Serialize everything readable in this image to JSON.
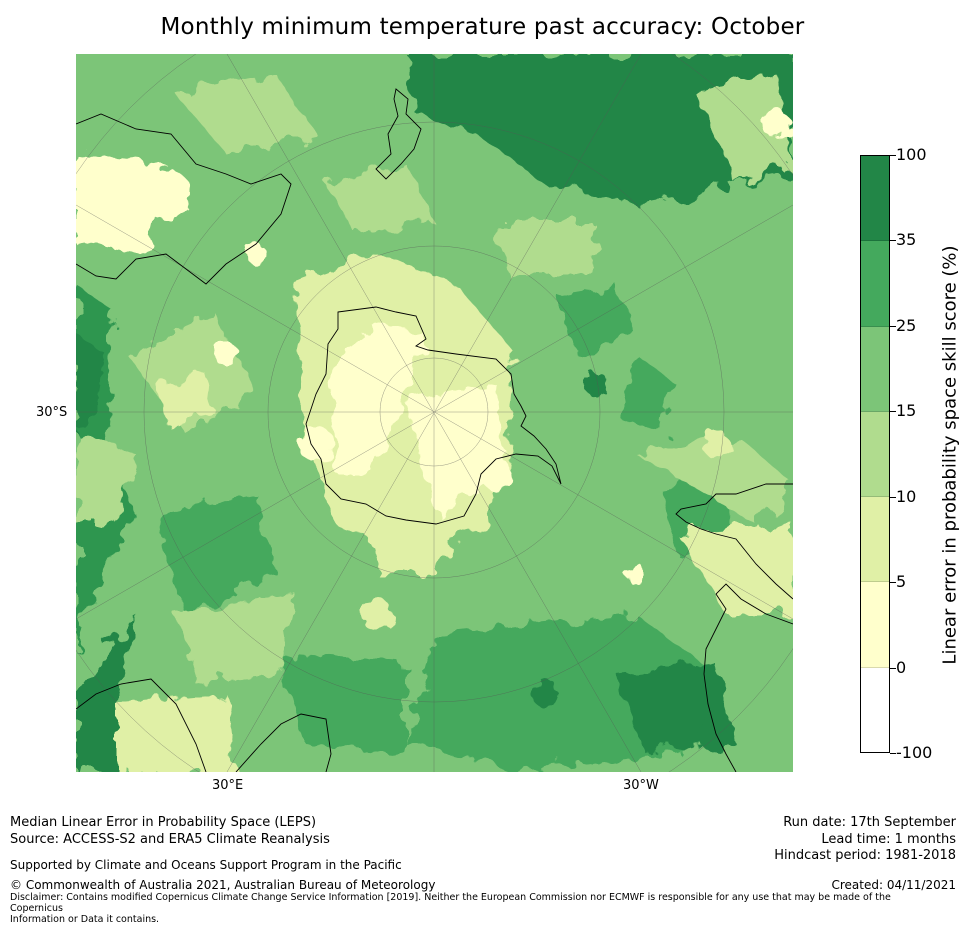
{
  "title": "Monthly minimum temperature past accuracy: October",
  "map": {
    "lat_label": "30°S",
    "lon_labels": [
      "30°E",
      "30°W"
    ],
    "landmasses": [
      "Antarctica",
      "South America",
      "New Zealand",
      "Australia",
      "Africa",
      "Madagascar"
    ]
  },
  "colorbar": {
    "axis_label": "Linear error in probability space skill score (%)",
    "bins": [
      {
        "range": "35 to 100",
        "color": "#228647"
      },
      {
        "range": "25 to 35",
        "color": "#44a95d"
      },
      {
        "range": "15 to 25",
        "color": "#7cc578"
      },
      {
        "range": "10 to 15",
        "color": "#b0dc8e"
      },
      {
        "range": "5 to 10",
        "color": "#e0f0a6"
      },
      {
        "range": "0 to 5",
        "color": "#ffffcc"
      },
      {
        "range": "-100 to 0",
        "color": "#ffffff"
      }
    ],
    "ticks": [
      "100",
      "35",
      "25",
      "15",
      "10",
      "5",
      "0",
      "-100"
    ]
  },
  "footer": {
    "left1": "Median Linear Error in Probability Space (LEPS)",
    "left2": "Source: ACCESS-S2 and ERA5 Climate Reanalysis",
    "support": "Supported by Climate and Oceans Support Program in the Pacific",
    "copyright": "© Commonwealth of Australia 2021, Australian Bureau of Meteorology",
    "disclaimer1": "Disclaimer: Contains modified Copernicus Climate Change Service Information [2019]. Neither the European Commission nor ECMWF is responsible for any use that may be made of the Copernicus",
    "disclaimer2": "Information or Data it contains.",
    "run_date": "Run date: 17th September",
    "lead_time": "Lead time: 1 months",
    "hindcast": "Hindcast period: 1981-2018",
    "created": "Created: 04/11/2021"
  }
}
